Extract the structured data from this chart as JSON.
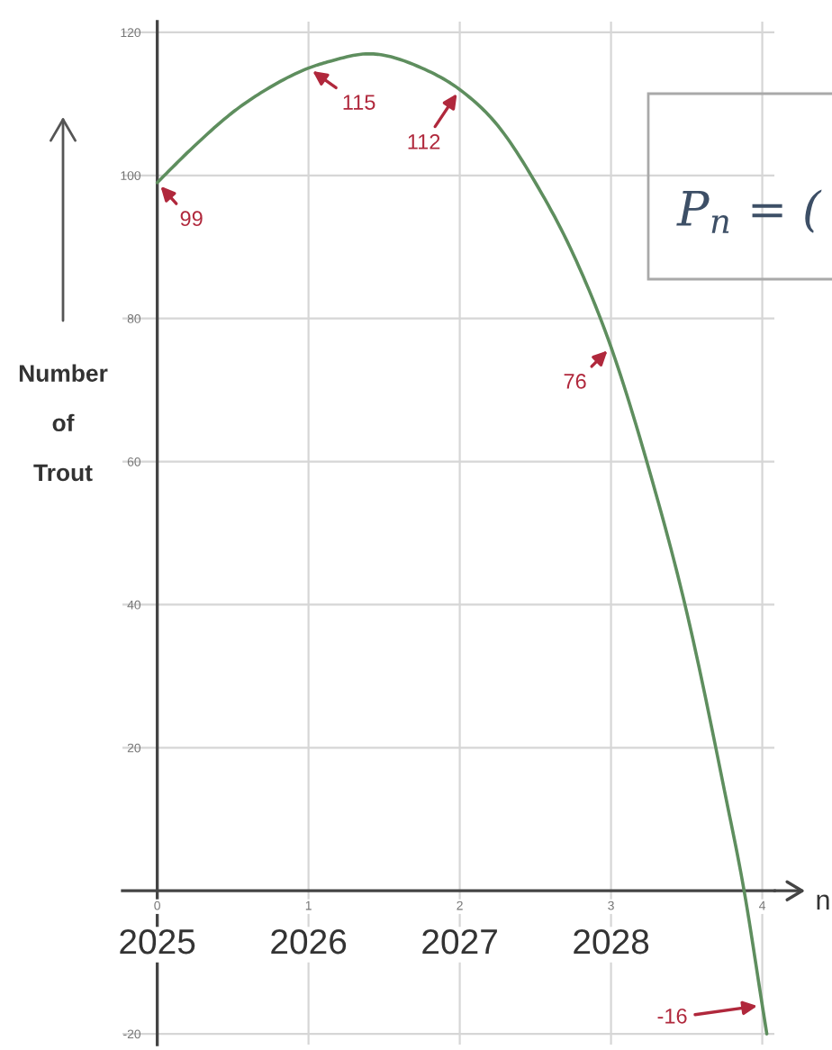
{
  "chart_data": {
    "type": "line",
    "x": [
      0,
      0.24,
      0.51,
      0.72,
      1,
      1.15,
      1.4,
      1.75,
      2,
      2.25,
      2.5,
      2.75,
      3,
      3.25,
      3.5,
      3.75,
      3.88,
      4,
      4.03
    ],
    "values": [
      99,
      104,
      109,
      112,
      115,
      116,
      117,
      115,
      112,
      107,
      99,
      89,
      76,
      59,
      39,
      14,
      0,
      -16,
      -20
    ],
    "color": "#5e8e5e",
    "xlabel": "n",
    "ylabel": "Number\nof\nTrout",
    "xlim": [
      -0.23,
      4.08
    ],
    "xticks": [
      0,
      1,
      2,
      3,
      4
    ],
    "ylim": [
      -21.5,
      121.5
    ],
    "yticks": [
      -20,
      20,
      40,
      60,
      80,
      100,
      120
    ],
    "x2lim": [
      2024.77,
      2029.08
    ],
    "x2ticks": [
      2025,
      2026,
      2027,
      2028
    ],
    "grid": true,
    "annotations": [
      {
        "text": "99",
        "x": 0,
        "y": 99
      },
      {
        "text": "115",
        "x": 1,
        "y": 115
      },
      {
        "text": "112",
        "x": 2,
        "y": 112
      },
      {
        "text": "76",
        "x": 3,
        "y": 76
      },
      {
        "text": "-16",
        "x": 4,
        "y": -16
      },
      "P$_{n}$ = ("
    ]
  }
}
